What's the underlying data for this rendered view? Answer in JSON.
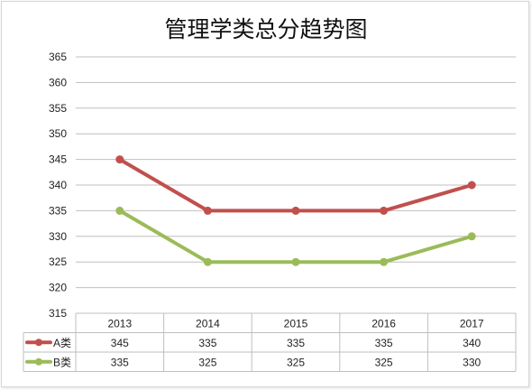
{
  "chart_data": {
    "type": "line",
    "title": "管理学类总分趋势图",
    "categories": [
      "2013",
      "2014",
      "2015",
      "2016",
      "2017"
    ],
    "ylim": [
      315,
      365
    ],
    "yticks": [
      315,
      320,
      325,
      330,
      335,
      340,
      345,
      350,
      355,
      360,
      365
    ],
    "grid": true,
    "legend": "data-table-rows",
    "data_table": true,
    "series": [
      {
        "name": "A类",
        "values": [
          345,
          335,
          335,
          335,
          340
        ],
        "color": "#c0504d"
      },
      {
        "name": "B类",
        "values": [
          335,
          325,
          325,
          325,
          330
        ],
        "color": "#9bbb59"
      }
    ]
  }
}
